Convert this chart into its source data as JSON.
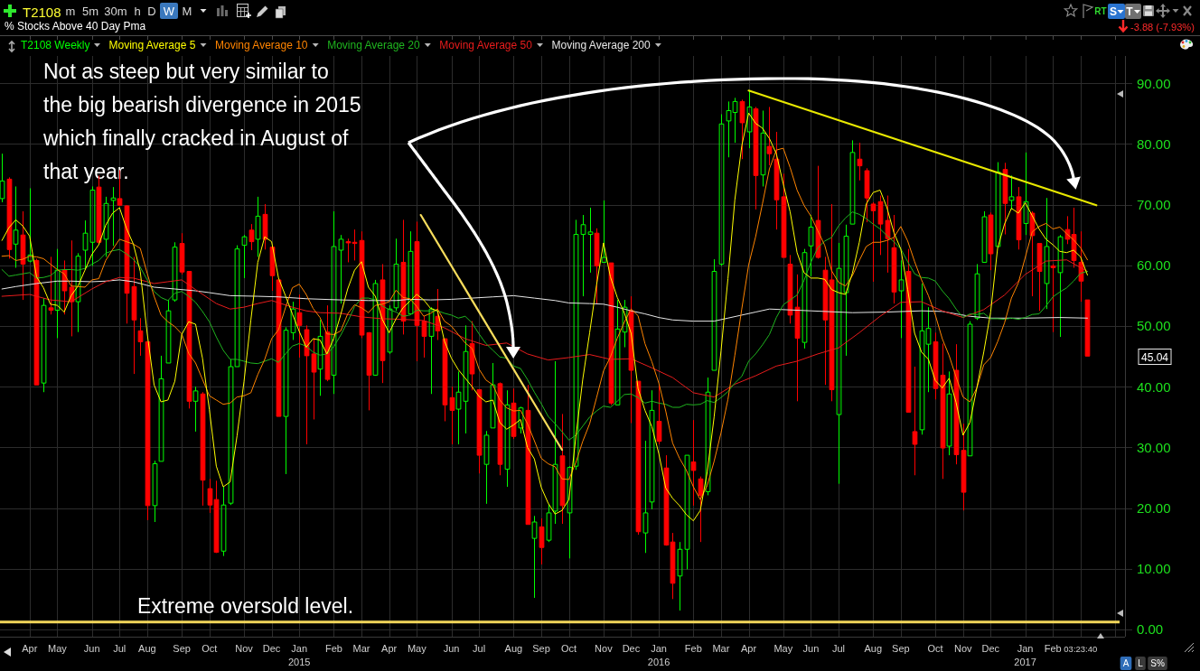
{
  "chart_data": {
    "type": "candlestick",
    "title": "T2108",
    "subtitle": "% Stocks Above 40 Day Pma",
    "x": [
      "2014-03-07",
      "2014-03-14",
      "2014-03-21",
      "2014-03-28",
      "2014-04-04",
      "2014-04-11",
      "2014-04-18",
      "2014-04-25",
      "2014-05-02",
      "2014-05-09",
      "2014-05-16",
      "2014-05-23",
      "2014-05-30",
      "2014-06-06",
      "2014-06-13",
      "2014-06-20",
      "2014-06-27",
      "2014-07-04",
      "2014-07-11",
      "2014-07-18",
      "2014-07-25",
      "2014-08-01",
      "2014-08-08",
      "2014-08-15",
      "2014-08-22",
      "2014-08-29",
      "2014-09-05",
      "2014-09-12",
      "2014-09-19",
      "2014-09-26",
      "2014-10-03",
      "2014-10-10",
      "2014-10-17",
      "2014-10-24",
      "2014-10-31",
      "2014-11-07",
      "2014-11-14",
      "2014-11-21",
      "2014-11-28",
      "2014-12-05",
      "2014-12-12",
      "2014-12-19",
      "2014-12-26",
      "2015-01-02",
      "2015-01-09",
      "2015-01-16",
      "2015-01-23",
      "2015-01-30",
      "2015-02-06",
      "2015-02-13",
      "2015-02-20",
      "2015-02-27",
      "2015-03-06",
      "2015-03-13",
      "2015-03-20",
      "2015-03-27",
      "2015-04-03",
      "2015-04-10",
      "2015-04-17",
      "2015-04-24",
      "2015-05-01",
      "2015-05-08",
      "2015-05-15",
      "2015-05-22",
      "2015-05-29",
      "2015-06-05",
      "2015-06-12",
      "2015-06-19",
      "2015-06-26",
      "2015-07-03",
      "2015-07-10",
      "2015-07-17",
      "2015-07-24",
      "2015-07-31",
      "2015-08-07",
      "2015-08-14",
      "2015-08-21",
      "2015-08-28",
      "2015-09-04",
      "2015-09-11",
      "2015-09-18",
      "2015-09-25",
      "2015-10-02",
      "2015-10-09",
      "2015-10-16",
      "2015-10-23",
      "2015-10-30",
      "2015-11-06",
      "2015-11-13",
      "2015-11-20",
      "2015-11-27",
      "2015-12-04",
      "2015-12-11",
      "2015-12-18",
      "2015-12-25",
      "2016-01-01",
      "2016-01-08",
      "2016-01-15",
      "2016-01-22",
      "2016-01-29",
      "2016-02-05",
      "2016-02-12",
      "2016-02-19",
      "2016-02-26",
      "2016-03-04",
      "2016-03-11",
      "2016-03-18",
      "2016-03-25",
      "2016-04-01",
      "2016-04-08",
      "2016-04-15",
      "2016-04-22",
      "2016-04-29",
      "2016-05-06",
      "2016-05-13",
      "2016-05-20",
      "2016-05-27",
      "2016-06-03",
      "2016-06-10",
      "2016-06-17",
      "2016-06-24",
      "2016-07-01",
      "2016-07-08",
      "2016-07-15",
      "2016-07-22",
      "2016-07-29",
      "2016-08-05",
      "2016-08-12",
      "2016-08-19",
      "2016-08-26",
      "2016-09-02",
      "2016-09-09",
      "2016-09-16",
      "2016-09-23",
      "2016-09-30",
      "2016-10-07",
      "2016-10-14",
      "2016-10-21",
      "2016-10-28",
      "2016-11-04",
      "2016-11-11",
      "2016-11-18",
      "2016-11-25",
      "2016-12-02",
      "2016-12-09",
      "2016-12-16",
      "2016-12-23",
      "2016-12-30",
      "2017-01-06",
      "2017-01-13",
      "2017-01-20",
      "2017-01-27",
      "2017-02-03",
      "2017-02-10",
      "2017-02-17",
      "2017-02-24",
      "2017-03-03",
      "2017-03-10"
    ],
    "xlim": [
      "2014-03-05",
      "2017-04-17"
    ],
    "xticks": [
      {
        "value": "2014-04-04",
        "label": "Apr"
      },
      {
        "value": "2014-05-02",
        "label": "May"
      },
      {
        "value": "2014-06-06",
        "label": "Jun"
      },
      {
        "value": "2014-07-04",
        "label": "Jul"
      },
      {
        "value": "2014-08-01",
        "label": "Aug"
      },
      {
        "value": "2014-09-05",
        "label": "Sep"
      },
      {
        "value": "2014-10-03",
        "label": "Oct"
      },
      {
        "value": "2014-11-07",
        "label": "Nov"
      },
      {
        "value": "2014-12-05",
        "label": "Dec"
      },
      {
        "value": "2015-01-02",
        "label": "Jan\n2015"
      },
      {
        "value": "2015-02-06",
        "label": "Feb"
      },
      {
        "value": "2015-03-06",
        "label": "Mar"
      },
      {
        "value": "2015-04-03",
        "label": "Apr"
      },
      {
        "value": "2015-05-01",
        "label": "May"
      },
      {
        "value": "2015-06-05",
        "label": "Jun"
      },
      {
        "value": "2015-07-03",
        "label": "Jul"
      },
      {
        "value": "2015-08-07",
        "label": "Aug"
      },
      {
        "value": "2015-09-04",
        "label": "Sep"
      },
      {
        "value": "2015-10-02",
        "label": "Oct"
      },
      {
        "value": "2015-11-06",
        "label": "Nov"
      },
      {
        "value": "2015-12-04",
        "label": "Dec"
      },
      {
        "value": "2016-01-01",
        "label": "Jan\n2016"
      },
      {
        "value": "2016-02-05",
        "label": "Feb"
      },
      {
        "value": "2016-03-04",
        "label": "Mar"
      },
      {
        "value": "2016-04-01",
        "label": "Apr"
      },
      {
        "value": "2016-05-06",
        "label": "May"
      },
      {
        "value": "2016-06-03",
        "label": "Jun"
      },
      {
        "value": "2016-07-01",
        "label": "Jul"
      },
      {
        "value": "2016-08-05",
        "label": "Aug"
      },
      {
        "value": "2016-09-02",
        "label": "Sep"
      },
      {
        "value": "2016-10-07",
        "label": "Oct"
      },
      {
        "value": "2016-11-04",
        "label": "Nov"
      },
      {
        "value": "2016-12-02",
        "label": "Dec"
      },
      {
        "value": "2017-01-06",
        "label": "Jan\n2017"
      },
      {
        "value": "2017-02-03",
        "label": "Feb"
      },
      {
        "value": "2017-03-03",
        "label": "03:23:40"
      },
      {
        "value": "2017-04-07",
        "label": null
      }
    ],
    "ylim": [
      -1.2,
      94.5
    ],
    "yticks": [
      {
        "value": 0,
        "label": "0.00"
      },
      {
        "value": 10,
        "label": "10.00"
      },
      {
        "value": 20,
        "label": "20.00"
      },
      {
        "value": 30,
        "label": "30.00"
      },
      {
        "value": 40,
        "label": "40.00"
      },
      {
        "value": 50,
        "label": "50.00"
      },
      {
        "value": 60,
        "label": "60.00"
      },
      {
        "value": 70,
        "label": "70.00"
      },
      {
        "value": 80,
        "label": "80.00"
      },
      {
        "value": 90,
        "label": "90.00"
      }
    ],
    "grid": true,
    "legend": "top left",
    "series": [
      {
        "name": "T2108 Weekly",
        "color": "#00ff00",
        "colors": [
          "#00ff00",
          "#ff0000",
          "#00ff00",
          "#ff0000",
          "#00ff00",
          "#ff0000",
          "#00ff00",
          "#ff0000",
          "#00ff00",
          "#ff0000",
          "#ff0000",
          "#00ff00",
          "#00ff00",
          "#00ff00",
          "#ff0000",
          "#00ff00",
          "#00ff00",
          "#ff0000",
          "#ff0000",
          "#ff0000",
          "#ff0000",
          "#ff0000",
          "#00ff00",
          "#00ff00",
          "#00ff00",
          "#00ff00",
          "#ff0000",
          "#ff0000",
          "#00ff00",
          "#ff0000",
          "#ff0000",
          "#ff0000",
          "#00ff00",
          "#00ff00",
          "#00ff00",
          "#00ff00",
          "#ff0000",
          "#00ff00",
          "#ff0000",
          "#ff0000",
          "#ff0000",
          "#00ff00",
          "#00ff00",
          "#ff0000",
          "#ff0000",
          "#ff0000",
          "#00ff00",
          "#ff0000",
          "#00ff00",
          "#00ff00",
          "#ff0000",
          "#ff0000",
          "#ff0000",
          "#ff0000",
          "#00ff00",
          "#ff0000",
          "#00ff00",
          "#00ff00",
          "#ff0000",
          "#00ff00",
          "#ff0000",
          "#ff0000",
          "#00ff00",
          "#ff0000",
          "#ff0000",
          "#ff0000",
          "#00ff00",
          "#00ff00",
          "#ff0000",
          "#ff0000",
          "#00ff00",
          "#00ff00",
          "#ff0000",
          "#00ff00",
          "#ff0000",
          "#00ff00",
          "#ff0000",
          "#00ff00",
          "#ff0000",
          "#00ff00",
          "#00ff00",
          "#ff0000",
          "#00ff00",
          "#00ff00",
          "#00ff00",
          "#00ff00",
          "#ff0000",
          "#00ff00",
          "#ff0000",
          "#00ff00",
          "#00ff00",
          "#ff0000",
          "#ff0000",
          "#00ff00",
          "#00ff00",
          "#ff0000",
          "#ff0000",
          "#ff0000",
          "#00ff00",
          "#00ff00",
          "#ff0000",
          "#ff0000",
          "#00ff00",
          "#00ff00",
          "#00ff00",
          "#00ff00",
          "#00ff00",
          "#ff0000",
          "#00ff00",
          "#ff0000",
          "#00ff00",
          "#ff0000",
          "#ff0000",
          "#ff0000",
          "#ff0000",
          "#ff0000",
          "#00ff00",
          "#00ff00",
          "#ff0000",
          "#ff0000",
          "#ff0000",
          "#00ff00",
          "#00ff00",
          "#00ff00",
          "#ff0000",
          "#ff0000",
          "#ff0000",
          "#ff0000",
          "#ff0000",
          "#ff0000",
          "#00ff00",
          "#ff0000",
          "#ff0000",
          "#00ff00",
          "#00ff00",
          "#ff0000",
          "#ff0000",
          "#00ff00",
          "#ff0000",
          "#ff0000",
          "#00ff00",
          "#00ff00",
          "#00ff00",
          "#ff0000",
          "#00ff00",
          "#ff0000",
          "#00ff00",
          "#ff0000",
          "#00ff00",
          "#ff0000",
          "#ff0000",
          "#00ff00",
          "#ff0000",
          "#00ff00",
          "#ff0000",
          "#ff0000",
          "#ff0000",
          "#ff0000"
        ],
        "ohlc": [
          [
            71.0,
            78.4,
            70.4,
            73.9
          ],
          [
            74.2,
            74.5,
            61.1,
            62.6
          ],
          [
            63.5,
            73.0,
            59.6,
            65.8
          ],
          [
            65.0,
            68.9,
            54.3,
            60.2
          ],
          [
            60.7,
            72.7,
            60.5,
            61.7
          ],
          [
            60.8,
            61.1,
            40.3,
            40.3
          ],
          [
            40.6,
            54.6,
            39.1,
            53.4
          ],
          [
            53.0,
            61.4,
            51.9,
            52.6
          ],
          [
            52.6,
            62.7,
            48.0,
            59.2
          ],
          [
            59.3,
            60.8,
            51.9,
            55.8
          ],
          [
            56.4,
            64.1,
            48.3,
            54.0
          ],
          [
            54.0,
            62.0,
            49.0,
            61.5
          ],
          [
            62.5,
            67.4,
            59.3,
            65.3
          ],
          [
            63.8,
            73.0,
            59.9,
            72.4
          ],
          [
            72.9,
            74.8,
            63.5,
            63.8
          ],
          [
            64.3,
            71.3,
            61.4,
            70.2
          ],
          [
            70.7,
            72.9,
            63.2,
            71.1
          ],
          [
            71.0,
            75.7,
            69.8,
            69.9
          ],
          [
            69.8,
            69.9,
            50.4,
            55.4
          ],
          [
            56.5,
            61.4,
            42.1,
            51.0
          ],
          [
            49.2,
            51.3,
            45.1,
            47.4
          ],
          [
            47.4,
            47.4,
            18.0,
            20.4
          ],
          [
            20.4,
            27.8,
            17.7,
            27.3
          ],
          [
            27.7,
            45.1,
            27.7,
            41.3
          ],
          [
            43.9,
            54.3,
            43.9,
            52.5
          ],
          [
            54.3,
            63.8,
            54.0,
            63.0
          ],
          [
            63.6,
            65.3,
            58.5,
            58.9
          ],
          [
            59.0,
            59.0,
            36.4,
            37.6
          ],
          [
            37.6,
            40.0,
            32.6,
            39.3
          ],
          [
            38.8,
            39.1,
            20.4,
            24.6
          ],
          [
            23.2,
            24.8,
            19.2,
            20.5
          ],
          [
            21.4,
            24.5,
            12.6,
            12.7
          ],
          [
            12.9,
            23.6,
            12.1,
            20.5
          ],
          [
            20.8,
            44.5,
            20.5,
            43.3
          ],
          [
            43.3,
            63.3,
            43.3,
            62.7
          ],
          [
            63.3,
            65.0,
            57.9,
            64.7
          ],
          [
            65.8,
            66.8,
            62.5,
            63.9
          ],
          [
            64.3,
            71.3,
            61.4,
            68.1
          ],
          [
            68.4,
            70.1,
            62.6,
            64.3
          ],
          [
            63.0,
            63.0,
            55.8,
            58.3
          ],
          [
            57.6,
            57.6,
            35.1,
            35.1
          ],
          [
            35.1,
            49.8,
            25.6,
            49.3
          ],
          [
            48.9,
            54.0,
            47.7,
            52.8
          ],
          [
            52.2,
            55.2,
            44.8,
            50.1
          ],
          [
            49.4,
            50.1,
            30.5,
            45.1
          ],
          [
            45.4,
            48.0,
            34.6,
            42.4
          ],
          [
            42.9,
            51.0,
            38.5,
            48.3
          ],
          [
            49.0,
            53.4,
            40.9,
            41.2
          ],
          [
            41.9,
            68.9,
            38.8,
            63.1
          ],
          [
            62.5,
            65.0,
            53.7,
            64.3
          ],
          [
            63.9,
            64.4,
            60.5,
            63.7
          ],
          [
            63.8,
            65.9,
            60.8,
            63.6
          ],
          [
            64.1,
            65.6,
            48.0,
            48.5
          ],
          [
            48.9,
            49.0,
            36.1,
            41.9
          ],
          [
            41.9,
            57.6,
            41.8,
            57.0
          ],
          [
            57.6,
            60.2,
            40.6,
            44.3
          ],
          [
            45.7,
            53.4,
            45.4,
            52.8
          ],
          [
            53.0,
            64.4,
            52.5,
            60.2
          ],
          [
            60.5,
            67.5,
            48.6,
            50.8
          ],
          [
            52.0,
            65.6,
            52.0,
            62.3
          ],
          [
            63.9,
            67.2,
            44.2,
            50.1
          ],
          [
            50.8,
            51.6,
            44.8,
            48.3
          ],
          [
            48.3,
            53.1,
            38.8,
            52.8
          ],
          [
            51.6,
            56.1,
            47.7,
            49.2
          ],
          [
            47.9,
            47.9,
            34.3,
            37.0
          ],
          [
            38.2,
            40.0,
            30.5,
            36.1
          ],
          [
            36.3,
            42.5,
            30.5,
            39.1
          ],
          [
            37.6,
            50.1,
            32.3,
            45.8
          ],
          [
            47.1,
            50.8,
            39.4,
            42.1
          ],
          [
            39.5,
            39.5,
            25.7,
            28.7
          ],
          [
            27.2,
            32.7,
            20.7,
            32.0
          ],
          [
            33.2,
            43.9,
            33.2,
            40.3
          ],
          [
            40.5,
            40.7,
            25.4,
            27.2
          ],
          [
            26.4,
            39.4,
            23.5,
            37.0
          ],
          [
            37.3,
            39.7,
            31.4,
            31.8
          ],
          [
            33.2,
            36.7,
            32.3,
            36.5
          ],
          [
            36.1,
            40.3,
            17.3,
            17.3
          ],
          [
            15.0,
            18.7,
            5.2,
            17.7
          ],
          [
            16.9,
            18.3,
            10.7,
            13.5
          ],
          [
            14.7,
            20.7,
            14.4,
            19.2
          ],
          [
            19.5,
            44.2,
            17.4,
            27.2
          ],
          [
            28.6,
            35.5,
            17.4,
            20.4
          ],
          [
            19.2,
            26.9,
            11.7,
            26.7
          ],
          [
            26.9,
            67.5,
            26.3,
            65.1
          ],
          [
            65.1,
            68.3,
            54.9,
            66.7
          ],
          [
            65.1,
            69.5,
            58.8,
            65.5
          ],
          [
            65.3,
            66.1,
            53.7,
            59.9
          ],
          [
            60.5,
            70.7,
            60.5,
            61.3
          ],
          [
            60.4,
            60.4,
            37.0,
            37.3
          ],
          [
            37.0,
            54.3,
            37.0,
            49.5
          ],
          [
            49.0,
            54.3,
            46.5,
            53.1
          ],
          [
            52.5,
            54.9,
            34.0,
            42.7
          ],
          [
            40.9,
            40.9,
            15.6,
            16.1
          ],
          [
            15.9,
            31.1,
            12.6,
            19.2
          ],
          [
            21.0,
            39.4,
            19.8,
            36.1
          ],
          [
            34.3,
            40.3,
            30.5,
            31.0
          ],
          [
            26.6,
            28.7,
            13.8,
            13.9
          ],
          [
            14.4,
            15.9,
            5.0,
            7.6
          ],
          [
            8.8,
            14.4,
            3.1,
            13.2
          ],
          [
            13.2,
            28.7,
            9.9,
            28.7
          ],
          [
            27.6,
            34.5,
            20.4,
            26.2
          ],
          [
            24.8,
            25.2,
            14.4,
            22.1
          ],
          [
            22.7,
            41.5,
            22.1,
            39.1
          ],
          [
            42.7,
            61.0,
            42.7,
            59.0
          ],
          [
            60.2,
            84.9,
            59.9,
            83.3
          ],
          [
            83.8,
            87.0,
            77.8,
            85.5
          ],
          [
            85.2,
            87.6,
            80.2,
            87.0
          ],
          [
            87.0,
            87.3,
            77.5,
            83.5
          ],
          [
            82.0,
            88.8,
            79.3,
            86.1
          ],
          [
            85.8,
            86.1,
            69.2,
            74.8
          ],
          [
            74.9,
            85.5,
            73.0,
            81.8
          ],
          [
            79.6,
            86.1,
            76.5,
            78.4
          ],
          [
            77.5,
            82.0,
            65.9,
            70.8
          ],
          [
            71.3,
            75.1,
            61.3,
            61.3
          ],
          [
            60.2,
            61.7,
            50.4,
            51.8
          ],
          [
            53.1,
            58.5,
            37.6,
            48.0
          ],
          [
            47.3,
            62.7,
            46.3,
            62.1
          ],
          [
            63.2,
            68.3,
            58.2,
            66.3
          ],
          [
            67.4,
            76.4,
            61.1,
            61.3
          ],
          [
            59.2,
            61.4,
            40.3,
            51.0
          ],
          [
            57.6,
            70.1,
            37.6,
            39.5
          ],
          [
            35.4,
            63.7,
            24.0,
            59.5
          ],
          [
            55.5,
            66.7,
            45.1,
            64.8
          ],
          [
            66.8,
            80.6,
            66.8,
            78.6
          ],
          [
            77.5,
            80.2,
            74.0,
            76.4
          ],
          [
            75.6,
            76.0,
            67.1,
            71.1
          ],
          [
            70.1,
            70.4,
            57.3,
            69.0
          ],
          [
            70.5,
            71.5,
            61.7,
            66.8
          ],
          [
            67.4,
            71.5,
            58.8,
            64.4
          ],
          [
            62.9,
            68.3,
            53.7,
            55.6
          ],
          [
            55.8,
            60.8,
            48.0,
            57.6
          ],
          [
            59.0,
            62.7,
            35.8,
            35.8
          ],
          [
            32.6,
            43.3,
            25.4,
            30.5
          ],
          [
            32.9,
            57.0,
            32.1,
            49.2
          ],
          [
            47.0,
            53.1,
            39.1,
            49.6
          ],
          [
            47.4,
            48.9,
            37.9,
            39.7
          ],
          [
            41.9,
            47.1,
            24.8,
            29.9
          ],
          [
            30.2,
            42.5,
            28.7,
            38.8
          ],
          [
            42.7,
            47.0,
            27.2,
            28.8
          ],
          [
            29.5,
            33.9,
            19.6,
            22.6
          ],
          [
            28.6,
            50.8,
            28.6,
            50.3
          ],
          [
            51.3,
            60.2,
            51.0,
            58.6
          ],
          [
            60.5,
            68.9,
            60.5,
            68.0
          ],
          [
            68.3,
            68.7,
            59.2,
            61.9
          ],
          [
            63.1,
            77.0,
            63.1,
            75.4
          ],
          [
            75.8,
            76.9,
            65.1,
            70.2
          ],
          [
            70.7,
            74.8,
            69.2,
            71.3
          ],
          [
            71.3,
            72.9,
            62.6,
            64.2
          ],
          [
            66.9,
            78.6,
            65.0,
            70.5
          ],
          [
            68.6,
            68.9,
            54.9,
            64.9
          ],
          [
            63.6,
            63.6,
            52.5,
            59.0
          ],
          [
            57.0,
            71.1,
            52.8,
            63.1
          ],
          [
            59.9,
            60.2,
            49.0,
            59.6
          ],
          [
            58.8,
            65.0,
            48.2,
            64.7
          ],
          [
            65.9,
            68.1,
            63.5,
            64.3
          ],
          [
            65.1,
            69.5,
            59.6,
            60.8
          ],
          [
            60.5,
            65.6,
            54.0,
            57.4
          ],
          [
            54.3,
            54.3,
            45.04,
            45.04
          ]
        ]
      },
      {
        "name": "Moving Average 5",
        "type": "line",
        "color": "#ffff00",
        "values": [
          64.1,
          66.2,
          67.5,
          66.5,
          64.8,
          58.1,
          56.3,
          53.6,
          53.4,
          52.3,
          55.0,
          56.6,
          59.2,
          61.8,
          63.4,
          66.6,
          68.6,
          69.5,
          66.1,
          63.5,
          59.0,
          48.8,
          40.3,
          37.5,
          37.8,
          40.9,
          48.6,
          50.7,
          50.3,
          44.7,
          36.2,
          26.9,
          23.5,
          24.3,
          31.9,
          40.8,
          51.0,
          60.5,
          64.7,
          63.9,
          57.9,
          55.0,
          52.0,
          49.1,
          46.5,
          47.9,
          47.7,
          45.4,
          48.0,
          51.9,
          56.1,
          59.2,
          60.6,
          56.4,
          54.9,
          51.1,
          48.9,
          51.2,
          53.0,
          54.1,
          55.2,
          54.3,
          52.9,
          52.5,
          47.5,
          44.7,
          42.8,
          41.4,
          40.0,
          38.4,
          37.5,
          37.8,
          34.1,
          33.0,
          33.7,
          34.6,
          30.0,
          28.1,
          23.4,
          20.8,
          19.0,
          19.6,
          21.4,
          31.7,
          41.2,
          48.9,
          56.8,
          63.7,
          58.1,
          54.7,
          52.2,
          48.8,
          39.7,
          36.1,
          33.4,
          29.0,
          23.3,
          21.6,
          20.4,
          18.9,
          17.9,
          19.6,
          25.9,
          35.0,
          45.9,
          57.8,
          70.8,
          79.7,
          85.1,
          83.4,
          82.6,
          80.9,
          78.4,
          73.4,
          68.8,
          62.1,
          58.8,
          57.9,
          57.9,
          57.7,
          56.0,
          55.5,
          55.2,
          58.7,
          63.8,
          70.1,
          72.0,
          72.4,
          69.5,
          65.4,
          62.7,
          56.0,
          48.8,
          45.7,
          44.5,
          41.0,
          39.8,
          41.4,
          37.4,
          32.0,
          34.1,
          39.8,
          45.7,
          52.3,
          62.8,
          66.8,
          69.4,
          68.6,
          70.3,
          68.2,
          66.0,
          64.3,
          63.4,
          62.3,
          62.1,
          62.5,
          61.4,
          58.4
        ]
      },
      {
        "name": "Moving Average 10",
        "type": "line",
        "color": "#ff8400",
        "values": [
          61.5,
          61.6,
          60.8,
          61.0,
          61.5,
          61.4,
          61.1,
          60.2,
          59.3,
          58.6,
          56.6,
          56.5,
          56.4,
          57.6,
          57.8,
          60.8,
          62.6,
          64.3,
          63.9,
          63.5,
          62.8,
          58.7,
          54.9,
          51.8,
          50.7,
          49.9,
          48.7,
          45.5,
          43.9,
          41.2,
          38.5,
          37.8,
          37.1,
          37.3,
          38.3,
          38.5,
          39.0,
          42.0,
          44.5,
          47.9,
          49.4,
          53.0,
          56.3,
          56.9,
          55.2,
          52.9,
          51.4,
          48.7,
          48.6,
          49.2,
          52.0,
          53.5,
          53.0,
          52.2,
          53.4,
          53.6,
          54.0,
          55.9,
          54.7,
          54.5,
          53.2,
          51.6,
          52.1,
          52.8,
          50.8,
          50.0,
          48.6,
          47.2,
          46.3,
          42.9,
          41.1,
          40.3,
          37.8,
          36.5,
          36.0,
          36.1,
          33.9,
          31.1,
          28.2,
          27.3,
          26.8,
          24.8,
          24.7,
          27.5,
          31.0,
          33.9,
          38.2,
          42.6,
          44.9,
          48.0,
          50.6,
          52.8,
          51.7,
          47.1,
          44.1,
          40.6,
          36.0,
          30.7,
          28.2,
          26.2,
          23.5,
          21.4,
          23.7,
          27.7,
          32.4,
          37.9,
          45.2,
          52.8,
          60.1,
          64.7,
          70.2,
          75.9,
          79.0,
          79.3,
          76.1,
          72.4,
          69.9,
          68.1,
          65.7,
          63.3,
          59.1,
          57.2,
          56.6,
          58.3,
          60.8,
          63.1,
          63.8,
          63.8,
          64.1,
          64.6,
          66.4,
          64.0,
          60.6,
          57.6,
          55.0,
          51.8,
          47.9,
          45.1,
          41.6,
          38.3,
          37.5,
          39.8,
          43.6,
          44.8,
          47.4,
          50.5,
          54.6,
          57.1,
          61.3,
          65.5,
          66.4,
          66.9,
          66.0,
          66.3,
          65.2,
          64.2,
          62.9,
          60.9
        ]
      },
      {
        "name": "Moving Average 20",
        "type": "line",
        "color": "#1fb51f",
        "values": [
          59.3,
          58.2,
          58.4,
          58.6,
          58.8,
          57.9,
          58.0,
          58.3,
          59.2,
          59.3,
          59.3,
          59.2,
          59.5,
          60.2,
          60.8,
          62.0,
          62.4,
          62.6,
          61.9,
          61.0,
          59.7,
          57.6,
          55.7,
          54.7,
          54.2,
          55.4,
          55.7,
          54.9,
          53.9,
          52.4,
          50.7,
          48.2,
          46.0,
          44.5,
          44.5,
          44.2,
          43.9,
          43.8,
          44.2,
          44.6,
          44.0,
          45.4,
          46.7,
          47.1,
          46.7,
          45.7,
          45.2,
          45.4,
          46.6,
          48.5,
          50.7,
          53.2,
          54.6,
          54.6,
          54.3,
          53.3,
          52.7,
          52.3,
          51.6,
          51.8,
          52.6,
          52.5,
          52.5,
          52.5,
          52.1,
          51.8,
          51.3,
          51.6,
          50.5,
          48.7,
          47.1,
          46.0,
          44.9,
          44.7,
          43.4,
          43.0,
          41.2,
          39.1,
          37.2,
          35.1,
          33.9,
          32.6,
          31.2,
          32.0,
          33.5,
          35.0,
          36.0,
          36.8,
          36.6,
          37.6,
          38.7,
          38.8,
          38.2,
          37.3,
          37.6,
          37.3,
          37.1,
          36.6,
          36.6,
          37.1,
          37.0,
          37.1,
          37.7,
          37.4,
          38.2,
          39.2,
          40.6,
          41.7,
          44.2,
          45.4,
          46.9,
          48.6,
          51.4,
          53.5,
          54.3,
          55.1,
          57.5,
          60.5,
          62.9,
          64.0,
          64.6,
          66.5,
          67.8,
          68.8,
          68.4,
          67.7,
          66.8,
          66.0,
          64.9,
          63.9,
          62.7,
          60.6,
          58.6,
          58.0,
          57.9,
          57.4,
          55.8,
          54.5,
          52.8,
          51.4,
          52.0,
          51.9,
          52.1,
          51.2,
          51.2,
          51.1,
          51.3,
          51.1,
          51.4,
          51.9,
          52.0,
          53.3,
          54.8,
          55.6,
          56.3,
          57.4,
          58.7,
          59.0
        ]
      },
      {
        "name": "Moving Average 50",
        "type": "line",
        "color": "#e81c1c",
        "x": [
          "2014-03-07",
          "2014-04-04",
          "2014-04-25",
          "2014-05-16",
          "2014-06-06",
          "2014-06-20",
          "2014-07-04",
          "2014-07-18",
          "2014-08-08",
          "2014-08-22",
          "2014-09-05",
          "2014-09-19",
          "2014-10-10",
          "2014-10-24",
          "2014-11-07",
          "2014-11-21",
          "2014-12-05",
          "2014-12-26",
          "2015-01-09",
          "2015-01-23",
          "2015-02-13",
          "2015-03-06",
          "2015-03-27",
          "2015-04-17",
          "2015-05-08",
          "2015-05-29",
          "2015-06-19",
          "2015-07-10",
          "2015-07-31",
          "2015-08-21",
          "2015-09-11",
          "2015-10-02",
          "2015-10-23",
          "2015-11-13",
          "2015-12-04",
          "2015-12-25",
          "2016-01-15",
          "2016-02-05",
          "2016-02-26",
          "2016-03-18",
          "2016-04-08",
          "2016-04-29",
          "2016-05-20",
          "2016-06-10",
          "2016-07-01",
          "2016-07-22",
          "2016-08-12",
          "2016-09-02",
          "2016-09-23",
          "2016-10-14",
          "2016-11-04",
          "2016-11-25",
          "2016-12-16",
          "2017-01-06",
          "2017-01-27",
          "2017-02-17",
          "2017-03-10"
        ],
        "values": [
          54.9,
          55.2,
          54.3,
          54.0,
          56.1,
          57.3,
          58.0,
          57.9,
          57.0,
          57.3,
          57.6,
          56.0,
          53.7,
          52.8,
          53.1,
          53.7,
          54.2,
          53.1,
          52.5,
          52.2,
          52.1,
          51.5,
          51.2,
          51.1,
          50.9,
          49.7,
          47.9,
          46.8,
          47.2,
          45.4,
          44.4,
          44.8,
          45.3,
          44.5,
          44.6,
          43.1,
          41.5,
          39.0,
          38.3,
          40.4,
          41.8,
          43.4,
          44.2,
          45.4,
          46.4,
          48.9,
          51.6,
          53.9,
          54.0,
          52.5,
          51.4,
          52.7,
          55.1,
          58.5,
          60.7,
          60.9,
          59.0
        ]
      },
      {
        "name": "Moving Average 200",
        "type": "line",
        "color": "#e6e6e6",
        "x": [
          "2014-03-07",
          "2014-03-21",
          "2014-04-11",
          "2014-05-02",
          "2014-05-16",
          "2014-06-06",
          "2014-06-20",
          "2014-07-04",
          "2014-07-18",
          "2014-08-08",
          "2014-08-29",
          "2014-09-19",
          "2014-10-03",
          "2014-10-24",
          "2014-11-21",
          "2014-12-12",
          "2015-01-09",
          "2015-02-13",
          "2015-03-13",
          "2015-04-10",
          "2015-04-24",
          "2015-05-15",
          "2015-06-05",
          "2015-06-26",
          "2015-07-17",
          "2015-08-07",
          "2015-08-28",
          "2015-09-18",
          "2015-10-02",
          "2015-10-23",
          "2015-11-06",
          "2015-11-20",
          "2015-12-04",
          "2015-12-18",
          "2016-01-01",
          "2016-01-15",
          "2016-02-05",
          "2016-02-26",
          "2016-03-11",
          "2016-03-25",
          "2016-04-08",
          "2016-04-22",
          "2016-05-06",
          "2016-06-03",
          "2016-07-15",
          "2016-08-19",
          "2016-09-23",
          "2016-10-14",
          "2016-10-28",
          "2016-11-11",
          "2016-12-02",
          "2017-01-06",
          "2017-02-10",
          "2017-03-10"
        ],
        "values": [
          56.1,
          56.5,
          57.0,
          57.4,
          57.4,
          57.3,
          57.4,
          57.6,
          57.3,
          56.4,
          56.1,
          55.8,
          55.5,
          55.0,
          54.9,
          54.8,
          54.5,
          54.3,
          54.2,
          54.2,
          54.4,
          54.3,
          54.4,
          54.6,
          54.8,
          55.0,
          54.6,
          54.2,
          53.8,
          53.7,
          53.6,
          53.1,
          52.5,
          52.0,
          51.4,
          51.0,
          50.8,
          50.8,
          51.3,
          51.8,
          52.3,
          52.8,
          52.7,
          52.5,
          52.2,
          52.3,
          52.5,
          52.4,
          52.0,
          51.6,
          51.3,
          51.3,
          51.4,
          51.3
        ]
      },
      {
        "type": "line",
        "color": "#f6dc5c",
        "x": [
          "2015-05-05",
          "2015-09-25"
        ],
        "values": [
          68.3,
          29.6
        ]
      },
      {
        "type": "line",
        "color": "#e8e800",
        "x": [
          "2016-04-01",
          "2017-03-19"
        ],
        "values": [
          88.8,
          69.9
        ]
      }
    ],
    "ref_lines": [
      {
        "axis": "y",
        "value": 1.2,
        "label": "Extreme oversold level.",
        "color": "#f2d65a"
      }
    ],
    "annotations": [
      "Not as steep but very similar to the big bearish divergence in 2015 which finally cracked in August of that year.",
      "m",
      "5m",
      "30m",
      "h",
      "D",
      "W",
      "M",
      "RT",
      "S",
      "T",
      "A",
      "L",
      "S%",
      "-3.88 (-7.93%)",
      "45.04"
    ]
  }
}
